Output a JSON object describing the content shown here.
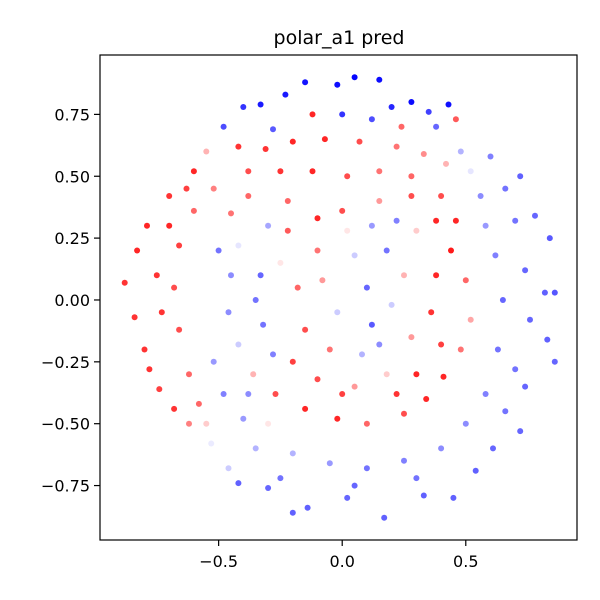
{
  "chart_data": {
    "type": "scatter",
    "title": "polar_a1 pred",
    "xlabel": "",
    "ylabel": "",
    "xlim": [
      -0.98,
      0.95
    ],
    "ylim": [
      -0.97,
      0.99
    ],
    "xticks": [
      -0.5,
      0.0,
      0.5
    ],
    "xtick_labels": [
      "−0.5",
      "0.0",
      "0.5"
    ],
    "yticks": [
      -0.75,
      -0.5,
      -0.25,
      0.0,
      0.25,
      0.5,
      0.75
    ],
    "ytick_labels": [
      "−0.75",
      "−0.50",
      "−0.25",
      "0.00",
      "0.25",
      "0.50",
      "0.75"
    ],
    "grid": false,
    "legend": "none",
    "colormap": "bwr",
    "colors": {
      "negative": "#0000ff",
      "neutral": "#ffffff",
      "positive": "#ff0000"
    },
    "value_range": [
      -1,
      1
    ],
    "points": [
      {
        "x": 0.05,
        "y": 0.9,
        "v": -0.98
      },
      {
        "x": 0.15,
        "y": 0.89,
        "v": -0.95
      },
      {
        "x": -0.02,
        "y": 0.87,
        "v": -0.95
      },
      {
        "x": -0.15,
        "y": 0.88,
        "v": -0.92
      },
      {
        "x": 0.28,
        "y": 0.8,
        "v": -0.96
      },
      {
        "x": 0.43,
        "y": 0.79,
        "v": -0.94
      },
      {
        "x": -0.23,
        "y": 0.83,
        "v": -0.9
      },
      {
        "x": -0.33,
        "y": 0.79,
        "v": -0.9
      },
      {
        "x": -0.48,
        "y": 0.7,
        "v": -0.7
      },
      {
        "x": 0.2,
        "y": 0.78,
        "v": -0.85
      },
      {
        "x": 0.46,
        "y": 0.73,
        "v": 0.65
      },
      {
        "x": 0.38,
        "y": 0.7,
        "v": -0.6
      },
      {
        "x": 0.52,
        "y": 0.52,
        "v": -0.1
      },
      {
        "x": 0.6,
        "y": 0.58,
        "v": -0.5
      },
      {
        "x": 0.66,
        "y": 0.45,
        "v": -0.55
      },
      {
        "x": 0.72,
        "y": 0.5,
        "v": -0.62
      },
      {
        "x": 0.78,
        "y": 0.34,
        "v": -0.6
      },
      {
        "x": 0.84,
        "y": 0.25,
        "v": -0.65
      },
      {
        "x": 0.82,
        "y": 0.03,
        "v": -0.62
      },
      {
        "x": 0.86,
        "y": 0.03,
        "v": -0.66
      },
      {
        "x": 0.83,
        "y": -0.16,
        "v": -0.62
      },
      {
        "x": 0.86,
        "y": -0.25,
        "v": -0.6
      },
      {
        "x": 0.74,
        "y": -0.35,
        "v": -0.6
      },
      {
        "x": 0.72,
        "y": -0.53,
        "v": -0.6
      },
      {
        "x": 0.61,
        "y": -0.6,
        "v": -0.6
      },
      {
        "x": 0.54,
        "y": -0.69,
        "v": -0.62
      },
      {
        "x": 0.45,
        "y": -0.8,
        "v": -0.62
      },
      {
        "x": 0.33,
        "y": -0.79,
        "v": -0.62
      },
      {
        "x": 0.17,
        "y": -0.88,
        "v": -0.62
      },
      {
        "x": 0.02,
        "y": -0.8,
        "v": -0.6
      },
      {
        "x": -0.14,
        "y": -0.84,
        "v": -0.62
      },
      {
        "x": -0.2,
        "y": -0.86,
        "v": -0.62
      },
      {
        "x": -0.3,
        "y": -0.76,
        "v": -0.6
      },
      {
        "x": -0.42,
        "y": -0.74,
        "v": -0.62
      },
      {
        "x": -0.46,
        "y": -0.68,
        "v": -0.2
      },
      {
        "x": -0.53,
        "y": -0.58,
        "v": -0.08
      },
      {
        "x": -0.62,
        "y": -0.5,
        "v": 0.5
      },
      {
        "x": -0.68,
        "y": -0.44,
        "v": 0.8
      },
      {
        "x": -0.74,
        "y": -0.36,
        "v": 0.75
      },
      {
        "x": -0.8,
        "y": -0.2,
        "v": 0.8
      },
      {
        "x": -0.84,
        "y": -0.07,
        "v": 0.8
      },
      {
        "x": -0.88,
        "y": 0.07,
        "v": 0.8
      },
      {
        "x": -0.83,
        "y": 0.2,
        "v": 0.85
      },
      {
        "x": -0.79,
        "y": 0.3,
        "v": 0.85
      },
      {
        "x": -0.7,
        "y": 0.42,
        "v": 0.8
      },
      {
        "x": -0.6,
        "y": 0.52,
        "v": 0.85
      },
      {
        "x": -0.55,
        "y": 0.6,
        "v": 0.3
      },
      {
        "x": -0.42,
        "y": 0.62,
        "v": 0.8
      },
      {
        "x": -0.31,
        "y": 0.61,
        "v": 0.8
      },
      {
        "x": -0.2,
        "y": 0.64,
        "v": 0.85
      },
      {
        "x": -0.07,
        "y": 0.65,
        "v": 0.85
      },
      {
        "x": 0.07,
        "y": 0.64,
        "v": 0.7
      },
      {
        "x": 0.22,
        "y": 0.62,
        "v": 0.55
      },
      {
        "x": 0.33,
        "y": 0.59,
        "v": 0.45
      },
      {
        "x": 0.42,
        "y": 0.55,
        "v": 0.3
      },
      {
        "x": 0.12,
        "y": 0.73,
        "v": -0.7
      },
      {
        "x": -0.4,
        "y": 0.78,
        "v": -0.8
      },
      {
        "x": -0.28,
        "y": 0.69,
        "v": -0.65
      },
      {
        "x": 0.0,
        "y": 0.75,
        "v": -0.8
      },
      {
        "x": 0.35,
        "y": 0.76,
        "v": -0.75
      },
      {
        "x": -0.45,
        "y": 0.35,
        "v": 0.55
      },
      {
        "x": -0.38,
        "y": 0.42,
        "v": 0.6
      },
      {
        "x": -0.22,
        "y": 0.4,
        "v": 0.6
      },
      {
        "x": -0.1,
        "y": 0.33,
        "v": 0.85
      },
      {
        "x": 0.0,
        "y": 0.36,
        "v": 0.7
      },
      {
        "x": 0.15,
        "y": 0.4,
        "v": 0.4
      },
      {
        "x": 0.28,
        "y": 0.42,
        "v": 0.7
      },
      {
        "x": 0.38,
        "y": 0.32,
        "v": 0.85
      },
      {
        "x": 0.44,
        "y": 0.2,
        "v": 0.9
      },
      {
        "x": 0.5,
        "y": 0.08,
        "v": 0.6
      },
      {
        "x": 0.52,
        "y": -0.08,
        "v": 0.35
      },
      {
        "x": 0.48,
        "y": -0.2,
        "v": 0.55
      },
      {
        "x": 0.41,
        "y": -0.31,
        "v": 0.85
      },
      {
        "x": 0.34,
        "y": -0.4,
        "v": 0.85
      },
      {
        "x": 0.25,
        "y": -0.46,
        "v": 0.7
      },
      {
        "x": 0.1,
        "y": -0.5,
        "v": 0.6
      },
      {
        "x": -0.02,
        "y": -0.48,
        "v": 0.85
      },
      {
        "x": -0.15,
        "y": -0.44,
        "v": 0.85
      },
      {
        "x": -0.27,
        "y": -0.38,
        "v": 0.7
      },
      {
        "x": -0.36,
        "y": -0.3,
        "v": 0.3
      },
      {
        "x": -0.42,
        "y": -0.18,
        "v": -0.2
      },
      {
        "x": -0.46,
        "y": -0.05,
        "v": -0.45
      },
      {
        "x": -0.45,
        "y": 0.1,
        "v": -0.45
      },
      {
        "x": -0.42,
        "y": 0.22,
        "v": -0.1
      },
      {
        "x": -0.5,
        "y": 0.2,
        "v": -0.55
      },
      {
        "x": -0.52,
        "y": -0.25,
        "v": -0.4
      },
      {
        "x": -0.48,
        "y": -0.38,
        "v": -0.5
      },
      {
        "x": -0.4,
        "y": -0.48,
        "v": -0.4
      },
      {
        "x": -0.3,
        "y": -0.5,
        "v": 0.1
      },
      {
        "x": -0.33,
        "y": 0.1,
        "v": -0.6
      },
      {
        "x": -0.32,
        "y": -0.1,
        "v": -0.55
      },
      {
        "x": -0.25,
        "y": 0.15,
        "v": 0.1
      },
      {
        "x": -0.18,
        "y": 0.05,
        "v": 0.6
      },
      {
        "x": -0.15,
        "y": -0.12,
        "v": 0.7
      },
      {
        "x": -0.1,
        "y": 0.2,
        "v": 0.55
      },
      {
        "x": -0.05,
        "y": -0.2,
        "v": 0.55
      },
      {
        "x": 0.05,
        "y": 0.18,
        "v": -0.2
      },
      {
        "x": 0.1,
        "y": 0.05,
        "v": -0.6
      },
      {
        "x": 0.12,
        "y": -0.1,
        "v": -0.65
      },
      {
        "x": 0.08,
        "y": -0.22,
        "v": -0.3
      },
      {
        "x": 0.18,
        "y": 0.2,
        "v": -0.55
      },
      {
        "x": 0.2,
        "y": -0.02,
        "v": -0.2
      },
      {
        "x": 0.25,
        "y": 0.1,
        "v": 0.3
      },
      {
        "x": 0.28,
        "y": -0.15,
        "v": 0.4
      },
      {
        "x": 0.18,
        "y": -0.3,
        "v": 0.2
      },
      {
        "x": 0.3,
        "y": 0.28,
        "v": 0.2
      },
      {
        "x": 0.58,
        "y": 0.3,
        "v": -0.4
      },
      {
        "x": 0.62,
        "y": 0.18,
        "v": -0.5
      },
      {
        "x": 0.65,
        "y": 0.0,
        "v": -0.6
      },
      {
        "x": 0.63,
        "y": -0.2,
        "v": -0.55
      },
      {
        "x": 0.58,
        "y": -0.38,
        "v": -0.5
      },
      {
        "x": 0.5,
        "y": -0.5,
        "v": -0.45
      },
      {
        "x": 0.4,
        "y": -0.6,
        "v": -0.45
      },
      {
        "x": 0.25,
        "y": -0.65,
        "v": -0.5
      },
      {
        "x": 0.1,
        "y": -0.68,
        "v": -0.55
      },
      {
        "x": -0.05,
        "y": -0.66,
        "v": -0.4
      },
      {
        "x": -0.2,
        "y": -0.62,
        "v": -0.3
      },
      {
        "x": -0.35,
        "y": -0.6,
        "v": -0.3
      },
      {
        "x": -0.62,
        "y": -0.3,
        "v": 0.6
      },
      {
        "x": -0.66,
        "y": -0.12,
        "v": 0.7
      },
      {
        "x": -0.68,
        "y": 0.05,
        "v": 0.7
      },
      {
        "x": -0.66,
        "y": 0.22,
        "v": 0.75
      },
      {
        "x": -0.6,
        "y": 0.36,
        "v": 0.6
      },
      {
        "x": -0.52,
        "y": 0.45,
        "v": 0.5
      },
      {
        "x": -0.75,
        "y": 0.1,
        "v": 0.8
      },
      {
        "x": -0.73,
        "y": -0.05,
        "v": 0.8
      },
      {
        "x": -0.7,
        "y": 0.3,
        "v": 0.85
      },
      {
        "x": -0.78,
        "y": -0.28,
        "v": 0.8
      },
      {
        "x": -0.58,
        "y": -0.42,
        "v": 0.6
      },
      {
        "x": -0.25,
        "y": 0.52,
        "v": 0.8
      },
      {
        "x": -0.12,
        "y": 0.52,
        "v": 0.85
      },
      {
        "x": 0.02,
        "y": 0.5,
        "v": 0.7
      },
      {
        "x": 0.15,
        "y": 0.52,
        "v": 0.55
      },
      {
        "x": 0.28,
        "y": 0.5,
        "v": 0.6
      },
      {
        "x": -0.38,
        "y": 0.52,
        "v": 0.7
      },
      {
        "x": 0.4,
        "y": 0.42,
        "v": 0.7
      },
      {
        "x": 0.46,
        "y": 0.32,
        "v": 0.85
      },
      {
        "x": 0.38,
        "y": 0.1,
        "v": 0.85
      },
      {
        "x": 0.36,
        "y": -0.05,
        "v": 0.8
      },
      {
        "x": 0.4,
        "y": -0.18,
        "v": 0.75
      },
      {
        "x": 0.3,
        "y": -0.3,
        "v": 0.85
      },
      {
        "x": 0.22,
        "y": -0.38,
        "v": 0.8
      },
      {
        "x": 0.0,
        "y": -0.38,
        "v": 0.75
      },
      {
        "x": -0.1,
        "y": -0.32,
        "v": 0.7
      },
      {
        "x": -0.2,
        "y": -0.25,
        "v": 0.75
      },
      {
        "x": -0.22,
        "y": 0.28,
        "v": 0.65
      },
      {
        "x": -0.08,
        "y": 0.08,
        "v": 0.4
      },
      {
        "x": -0.02,
        "y": -0.05,
        "v": -0.2
      },
      {
        "x": 0.02,
        "y": 0.28,
        "v": 0.1
      },
      {
        "x": 0.12,
        "y": 0.3,
        "v": -0.4
      },
      {
        "x": 0.22,
        "y": 0.32,
        "v": -0.5
      },
      {
        "x": 0.15,
        "y": -0.18,
        "v": -0.45
      },
      {
        "x": 0.05,
        "y": -0.35,
        "v": 0.4
      },
      {
        "x": -0.3,
        "y": 0.3,
        "v": -0.35
      },
      {
        "x": -0.35,
        "y": 0.0,
        "v": -0.55
      },
      {
        "x": -0.28,
        "y": -0.22,
        "v": -0.5
      },
      {
        "x": -0.38,
        "y": -0.38,
        "v": -0.45
      },
      {
        "x": 0.7,
        "y": 0.32,
        "v": -0.55
      },
      {
        "x": 0.74,
        "y": 0.12,
        "v": -0.6
      },
      {
        "x": 0.76,
        "y": -0.08,
        "v": -0.6
      },
      {
        "x": 0.7,
        "y": -0.28,
        "v": -0.55
      },
      {
        "x": 0.66,
        "y": -0.45,
        "v": -0.55
      },
      {
        "x": 0.56,
        "y": 0.42,
        "v": -0.45
      },
      {
        "x": 0.48,
        "y": 0.6,
        "v": -0.3
      },
      {
        "x": 0.05,
        "y": -0.75,
        "v": -0.6
      },
      {
        "x": -0.25,
        "y": -0.72,
        "v": -0.55
      },
      {
        "x": 0.3,
        "y": -0.72,
        "v": -0.55
      },
      {
        "x": -0.55,
        "y": -0.5,
        "v": 0.2
      },
      {
        "x": -0.63,
        "y": 0.45,
        "v": 0.75
      },
      {
        "x": -0.12,
        "y": 0.75,
        "v": 0.85
      },
      {
        "x": 0.24,
        "y": 0.7,
        "v": 0.6
      }
    ]
  }
}
